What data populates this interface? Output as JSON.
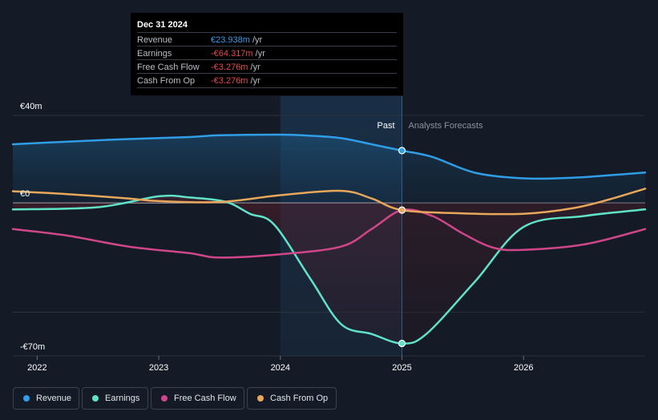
{
  "tooltip": {
    "date": "Dec 31 2024",
    "rows": [
      {
        "label": "Revenue",
        "value": "€23.938m",
        "unit": "/yr",
        "color": "#2f9ee6"
      },
      {
        "label": "Earnings",
        "value": "-€64.317m",
        "unit": "/yr",
        "color": "#e5484d"
      },
      {
        "label": "Free Cash Flow",
        "value": "-€3.276m",
        "unit": "/yr",
        "color": "#e5484d"
      },
      {
        "label": "Cash From Op",
        "value": "-€3.276m",
        "unit": "/yr",
        "color": "#e5484d"
      }
    ]
  },
  "labels": {
    "past": "Past",
    "forecast": "Analysts Forecasts"
  },
  "chart_data": {
    "type": "line",
    "title": "",
    "xlabel": "",
    "ylabel": "",
    "ylim": [
      -70,
      40
    ],
    "y_ticks": [
      {
        "value": 40,
        "label": "€40m"
      },
      {
        "value": 0,
        "label": "€0"
      },
      {
        "value": -70,
        "label": "-€70m"
      }
    ],
    "x_ticks": [
      {
        "value": 2022,
        "label": "2022"
      },
      {
        "value": 2023,
        "label": "2023"
      },
      {
        "value": 2024,
        "label": "2024"
      },
      {
        "value": 2025,
        "label": "2025"
      },
      {
        "value": 2026,
        "label": "2026"
      }
    ],
    "xlim": [
      2021.8,
      2027.0
    ],
    "highlight_range": [
      2024.0,
      2025.0
    ],
    "divider_x": 2025.0,
    "series": [
      {
        "name": "Revenue",
        "color": "#2f9ee6",
        "points": [
          [
            2021.8,
            26.8
          ],
          [
            2022.25,
            28
          ],
          [
            2022.75,
            29.2
          ],
          [
            2023.25,
            30.1
          ],
          [
            2023.5,
            30.9
          ],
          [
            2024.0,
            31.2
          ],
          [
            2024.25,
            30.7
          ],
          [
            2024.5,
            29.6
          ],
          [
            2024.75,
            26.8
          ],
          [
            2025.0,
            23.9
          ],
          [
            2025.25,
            21
          ],
          [
            2025.6,
            13.8
          ],
          [
            2026.0,
            11.2
          ],
          [
            2026.4,
            11.5
          ],
          [
            2026.7,
            12.6
          ],
          [
            2027.0,
            13.9
          ]
        ]
      },
      {
        "name": "Earnings",
        "color": "#5fe2c8",
        "points": [
          [
            2021.8,
            -3
          ],
          [
            2022.5,
            -2
          ],
          [
            2023.0,
            3
          ],
          [
            2023.25,
            2.5
          ],
          [
            2023.55,
            0.5
          ],
          [
            2023.75,
            -5
          ],
          [
            2023.95,
            -10
          ],
          [
            2024.25,
            -35
          ],
          [
            2024.5,
            -55.5
          ],
          [
            2024.75,
            -60
          ],
          [
            2025.0,
            -64.3
          ],
          [
            2025.2,
            -60
          ],
          [
            2025.6,
            -36
          ],
          [
            2026.0,
            -11
          ],
          [
            2026.5,
            -6
          ],
          [
            2027.0,
            -3
          ]
        ]
      },
      {
        "name": "Free Cash Flow",
        "color": "#d0468a",
        "points": [
          [
            2021.8,
            -12
          ],
          [
            2022.25,
            -15
          ],
          [
            2022.75,
            -20
          ],
          [
            2023.25,
            -23
          ],
          [
            2023.5,
            -25
          ],
          [
            2024.0,
            -23.5
          ],
          [
            2024.5,
            -20
          ],
          [
            2024.75,
            -12
          ],
          [
            2025.0,
            -3.3
          ],
          [
            2025.25,
            -6
          ],
          [
            2025.5,
            -14
          ],
          [
            2025.75,
            -20.5
          ],
          [
            2026.0,
            -21.5
          ],
          [
            2026.5,
            -19
          ],
          [
            2027.0,
            -12
          ]
        ]
      },
      {
        "name": "Cash From Op",
        "color": "#e8a75a",
        "points": [
          [
            2021.8,
            5.3
          ],
          [
            2022.25,
            4
          ],
          [
            2022.75,
            2
          ],
          [
            2023.0,
            0.8
          ],
          [
            2023.5,
            0.4
          ],
          [
            2024.0,
            3.5
          ],
          [
            2024.5,
            5.5
          ],
          [
            2024.75,
            2
          ],
          [
            2025.0,
            -3.3
          ],
          [
            2025.5,
            -4.8
          ],
          [
            2026.0,
            -5
          ],
          [
            2026.4,
            -2.5
          ],
          [
            2026.7,
            1.5
          ],
          [
            2027.0,
            6.5
          ]
        ]
      }
    ]
  },
  "legend": [
    {
      "label": "Revenue",
      "color": "#2f9ee6"
    },
    {
      "label": "Earnings",
      "color": "#5fe2c8"
    },
    {
      "label": "Free Cash Flow",
      "color": "#d0468a"
    },
    {
      "label": "Cash From Op",
      "color": "#e8a75a"
    }
  ]
}
